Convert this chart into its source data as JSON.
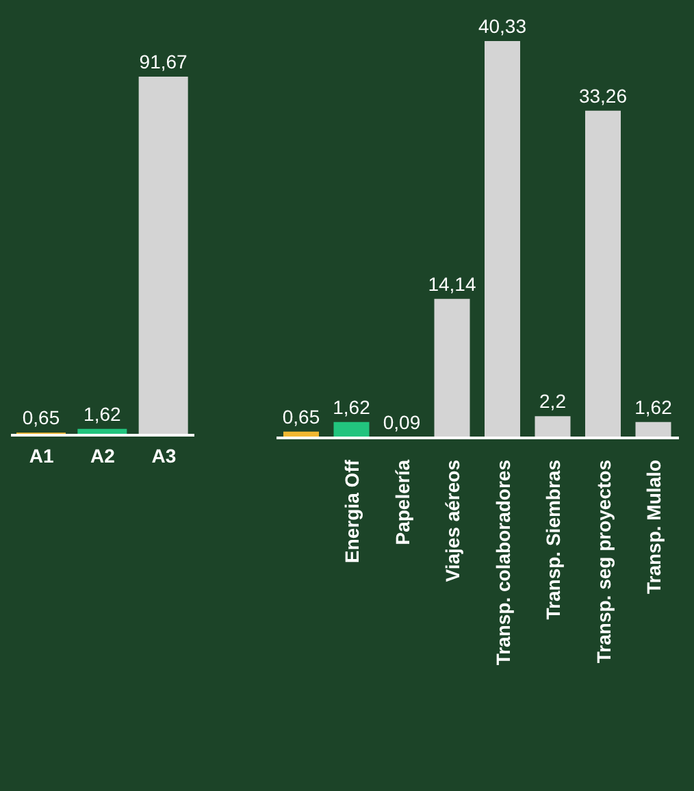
{
  "chart_data": [
    {
      "type": "bar",
      "categories": [
        "A1",
        "A2",
        "A3"
      ],
      "values": [
        0.65,
        1.62,
        91.67
      ],
      "colors": [
        "#f2b731",
        "#22c47e",
        "#d4d4d4"
      ],
      "value_labels": [
        "0,65",
        "1,62",
        "91,67"
      ]
    },
    {
      "type": "bar",
      "categories": [
        null,
        "Energia Off",
        "Papelería",
        "Viajes aéreos",
        "Transp. colaboradores",
        "Transp. Siembras",
        "Transp. seg proyectos",
        "Transp. Mulalo"
      ],
      "values": [
        0.65,
        1.62,
        0.09,
        14.14,
        40.33,
        2.2,
        33.26,
        1.62
      ],
      "colors": [
        "#f2b731",
        "#22c47e",
        "#f2b731",
        "#d4d4d4",
        "#d4d4d4",
        "#d4d4d4",
        "#d4d4d4",
        "#d4d4d4"
      ],
      "value_labels": [
        "0,65",
        "1,62",
        "0,09",
        "14,14",
        "40,33",
        "2,2",
        "33,26",
        "1,62"
      ]
    }
  ]
}
